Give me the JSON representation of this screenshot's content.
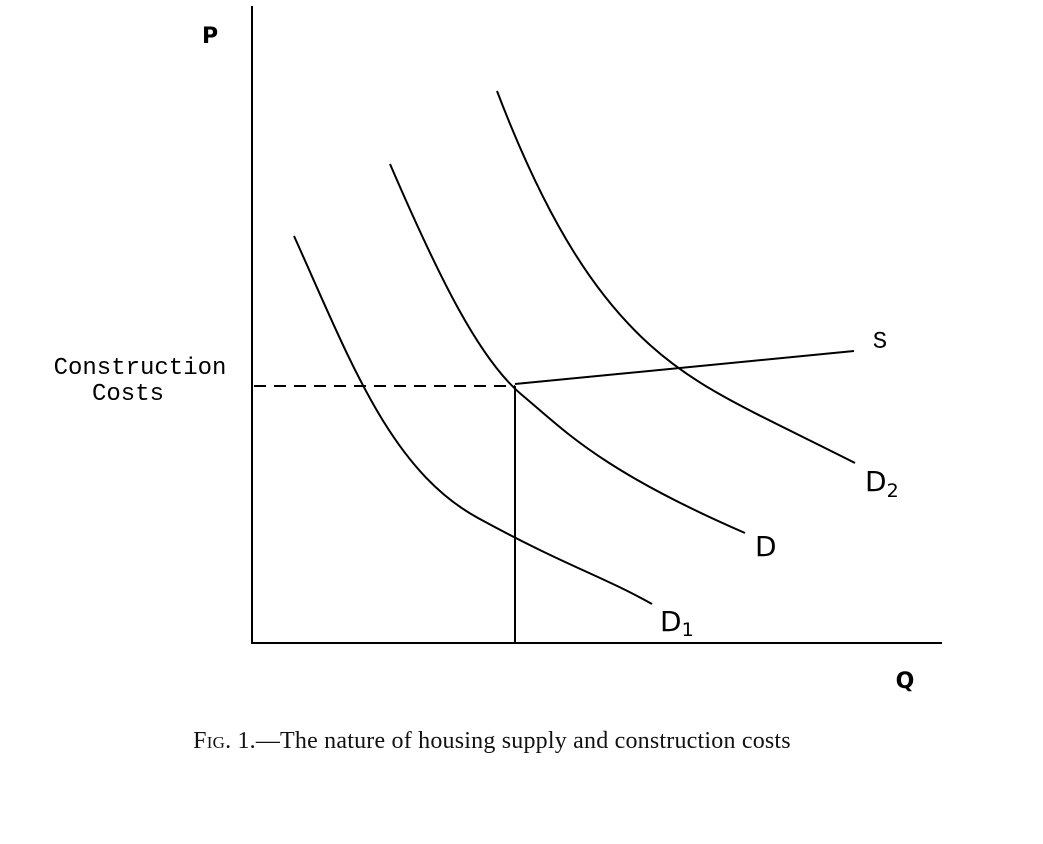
{
  "axes": {
    "y_label": "P",
    "x_label": "Q"
  },
  "price_level": {
    "label_line1": "Construction",
    "label_line2": "Costs"
  },
  "curves": {
    "supply": {
      "label": "S"
    },
    "demand_low": {
      "label": "D",
      "subscript": "1"
    },
    "demand_mid": {
      "label": "D"
    },
    "demand_high": {
      "label": "D",
      "subscript": "2"
    }
  },
  "caption": {
    "fig_initial": "F",
    "fig_rest": "ig",
    "text": ". 1.—The nature of housing supply and construction costs"
  },
  "colors": {
    "ink": "#000000",
    "caption": "#111111"
  }
}
